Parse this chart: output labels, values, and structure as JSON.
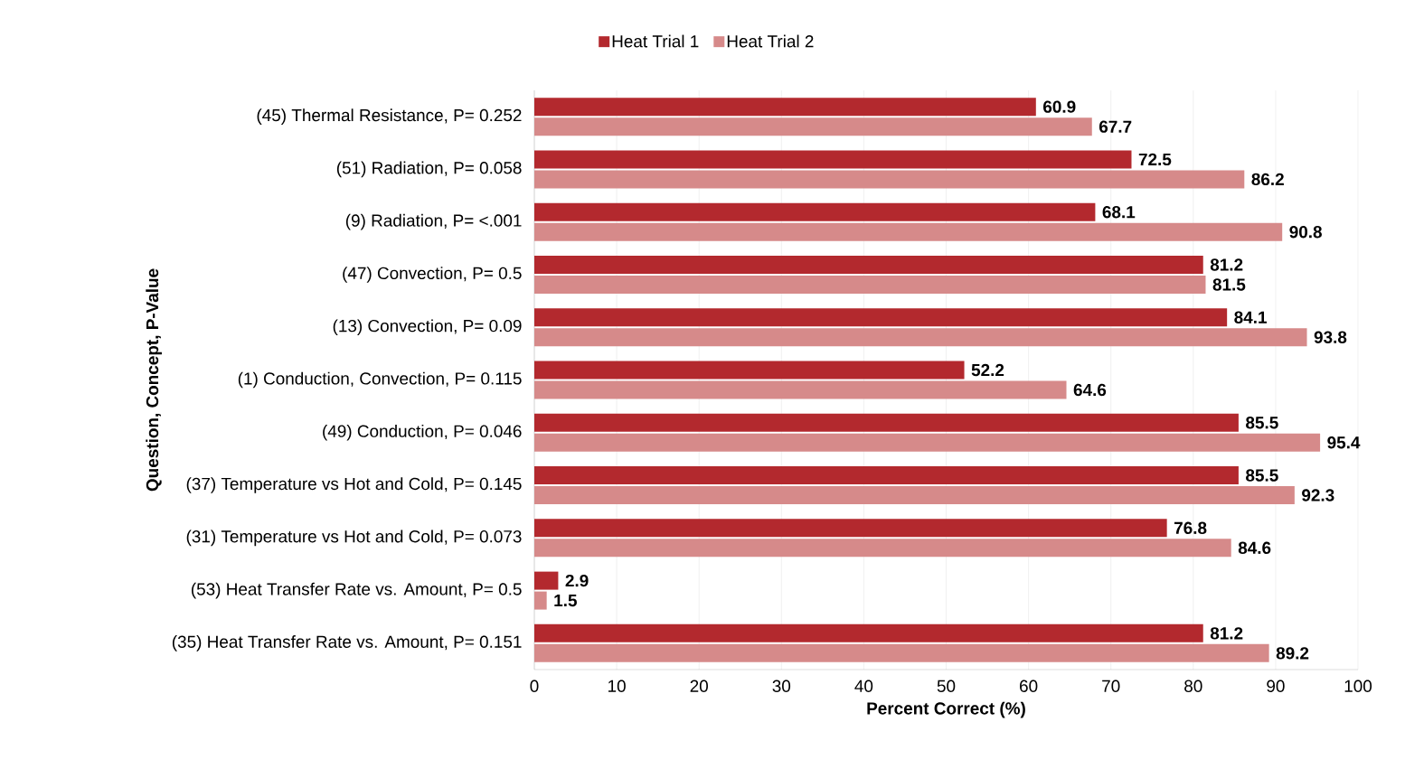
{
  "chart_data": {
    "type": "bar",
    "orientation": "horizontal",
    "categories": [
      "(45) Thermal Resistance, P= 0.252",
      "(51) Radiation, P= 0.058",
      "(9) Radiation, P= <.001",
      "(47) Convection, P= 0.5",
      "(13) Convection, P= 0.09",
      "(1) Conduction, Convection, P= 0.115",
      "(49) Conduction, P= 0.046",
      "(37) Temperature vs Hot and Cold, P= 0.145",
      "(31) Temperature vs Hot and Cold, P= 0.073",
      "(53) Heat Transfer Rate vs. Amount, P= 0.5",
      "(35) Heat Transfer Rate vs. Amount, P= 0.151"
    ],
    "series": [
      {
        "name": "Heat Trial 1",
        "color": "#b3292e",
        "values": [
          60.9,
          72.5,
          68.1,
          81.2,
          84.1,
          52.2,
          85.5,
          85.5,
          76.8,
          2.9,
          81.2
        ]
      },
      {
        "name": "Heat Trial 2",
        "color": "#d68a8a",
        "values": [
          67.7,
          86.2,
          90.8,
          81.5,
          93.8,
          64.6,
          95.4,
          92.3,
          84.6,
          1.5,
          89.2
        ]
      }
    ],
    "xlim": [
      0,
      100
    ],
    "xticks": [
      0,
      10,
      20,
      30,
      40,
      50,
      60,
      70,
      80,
      90,
      100
    ],
    "xlabel": "Percent Correct (%)",
    "ylabel": "Question, Concept, P-Value",
    "grid": "x",
    "legend": "top",
    "data_labels": true
  }
}
